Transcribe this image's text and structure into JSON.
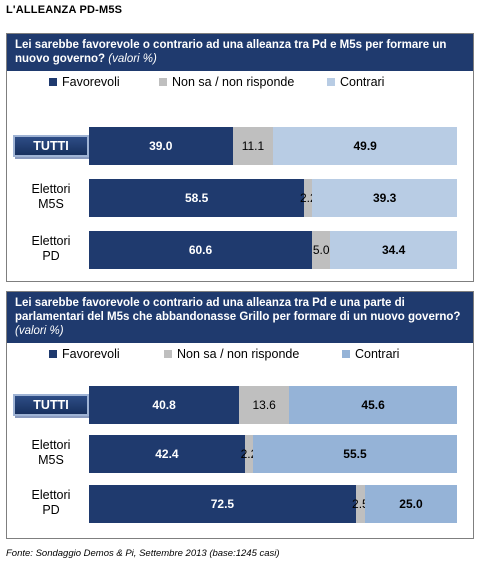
{
  "page_title": "L'ALLEANZA  PD-M5S",
  "footer": "Fonte: Sondaggio Demos & Pi, Settembre 2013 (base:1245 casi)",
  "colors": {
    "favorevoli": "#1f3a6e",
    "non_sa": "#bfbfbf",
    "contrari_1": "#b8cce4",
    "contrari_2": "#95b3d7"
  },
  "chart_data": [
    {
      "type": "bar",
      "orientation": "horizontal",
      "stacked": true,
      "title": "Lei sarebbe favorevole o contrario ad una alleanza tra Pd e M5s per formare un nuovo governo?",
      "title_note": "(valori %)",
      "categories": [
        "TUTTI",
        "Elettori M5S",
        "Elettori PD"
      ],
      "series": [
        {
          "name": "Favorevoli",
          "values": [
            39.0,
            58.5,
            60.6
          ]
        },
        {
          "name": "Non sa / non risponde",
          "values": [
            11.1,
            2.2,
            5.0
          ]
        },
        {
          "name": "Contrari",
          "values": [
            49.9,
            39.3,
            34.4
          ]
        }
      ],
      "value_labels": [
        [
          "39.0",
          "11.1",
          "49.9"
        ],
        [
          "58.5",
          "2.2",
          "39.3"
        ],
        [
          "60.6",
          "5.0",
          "34.4"
        ]
      ],
      "legend": "top",
      "xlim": [
        0,
        100
      ]
    },
    {
      "type": "bar",
      "orientation": "horizontal",
      "stacked": true,
      "title": "Lei sarebbe favorevole o contrario ad una alleanza tra Pd e  una parte di parlamentari del M5s che abbandonasse Grillo per formare di un nuovo governo?",
      "title_note": "(valori %)",
      "categories": [
        "TUTTI",
        "Elettori M5S",
        "Elettori PD"
      ],
      "series": [
        {
          "name": "Favorevoli",
          "values": [
            40.8,
            42.4,
            72.5
          ]
        },
        {
          "name": "Non sa / non risponde",
          "values": [
            13.6,
            2.2,
            2.5
          ]
        },
        {
          "name": "Contrari",
          "values": [
            45.6,
            55.5,
            25.0
          ]
        }
      ],
      "value_labels": [
        [
          "40.8",
          "13.6",
          "45.6"
        ],
        [
          "42.4",
          "2.2",
          "55.5"
        ],
        [
          "72.5",
          "2.5",
          "25.0"
        ]
      ],
      "legend": "top",
      "xlim": [
        0,
        100
      ]
    }
  ]
}
